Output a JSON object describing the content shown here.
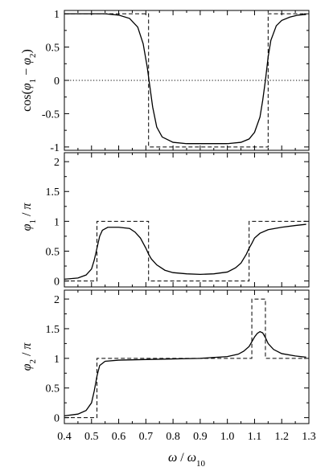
{
  "chart_data": [
    {
      "type": "line",
      "id": "cos",
      "ylabel_parts": [
        "cos(",
        "φ",
        "1",
        " − ",
        "φ",
        "2",
        ")"
      ],
      "xlim": [
        0.4,
        1.3
      ],
      "ylim": [
        -1.05,
        1.05
      ],
      "yticks": [
        1,
        0.5,
        0,
        -0.5,
        -1
      ],
      "ytick_labels": [
        "1",
        "0.5",
        "0",
        "-0.5",
        "-1"
      ],
      "reference_line": {
        "y": 0,
        "style": "dotted"
      },
      "series": [
        {
          "style": "solid",
          "x": [
            0.4,
            0.55,
            0.6,
            0.64,
            0.67,
            0.69,
            0.705,
            0.715,
            0.725,
            0.74,
            0.76,
            0.8,
            0.85,
            0.9,
            0.95,
            1.0,
            1.05,
            1.08,
            1.1,
            1.12,
            1.13,
            1.14,
            1.15,
            1.16,
            1.18,
            1.2,
            1.23,
            1.26,
            1.29
          ],
          "y": [
            1.0,
            1.0,
            0.98,
            0.93,
            0.8,
            0.55,
            0.2,
            -0.1,
            -0.4,
            -0.7,
            -0.85,
            -0.93,
            -0.95,
            -0.95,
            -0.95,
            -0.95,
            -0.93,
            -0.88,
            -0.78,
            -0.55,
            -0.3,
            0.0,
            0.35,
            0.6,
            0.82,
            0.9,
            0.95,
            0.98,
            0.99
          ]
        },
        {
          "style": "dashed",
          "x": [
            0.4,
            0.71,
            0.71,
            1.15,
            1.15,
            1.29
          ],
          "y": [
            1,
            1,
            -1,
            -1,
            1,
            1
          ]
        }
      ]
    },
    {
      "type": "line",
      "id": "phi1",
      "ylabel_parts": [
        "φ",
        "1",
        " / ",
        "π"
      ],
      "xlim": [
        0.4,
        1.3
      ],
      "ylim": [
        -0.1,
        2.15
      ],
      "yticks": [
        0,
        0.5,
        1,
        1.5,
        2
      ],
      "ytick_labels": [
        "0",
        "0.5",
        "1",
        "1.5",
        "2"
      ],
      "series": [
        {
          "style": "solid",
          "x": [
            0.4,
            0.45,
            0.48,
            0.5,
            0.51,
            0.52,
            0.53,
            0.54,
            0.56,
            0.6,
            0.64,
            0.66,
            0.68,
            0.7,
            0.71,
            0.72,
            0.74,
            0.77,
            0.8,
            0.85,
            0.9,
            0.95,
            1.0,
            1.03,
            1.05,
            1.07,
            1.08,
            1.09,
            1.1,
            1.12,
            1.15,
            1.2,
            1.25,
            1.29
          ],
          "y": [
            0.03,
            0.05,
            0.1,
            0.2,
            0.35,
            0.55,
            0.75,
            0.85,
            0.9,
            0.9,
            0.88,
            0.82,
            0.72,
            0.55,
            0.45,
            0.37,
            0.27,
            0.18,
            0.14,
            0.12,
            0.11,
            0.12,
            0.15,
            0.22,
            0.3,
            0.45,
            0.55,
            0.63,
            0.72,
            0.8,
            0.86,
            0.9,
            0.93,
            0.95
          ]
        },
        {
          "style": "dashed",
          "x": [
            0.4,
            0.52,
            0.52,
            0.71,
            0.71,
            1.08,
            1.08,
            1.29
          ],
          "y": [
            0,
            0,
            1,
            1,
            0,
            0,
            1,
            1
          ]
        }
      ]
    },
    {
      "type": "line",
      "id": "phi2",
      "ylabel_parts": [
        "φ",
        "2",
        " / ",
        "π"
      ],
      "xlabel_parts": [
        "ω",
        " / ",
        "ω",
        "10"
      ],
      "xlim": [
        0.4,
        1.3
      ],
      "ylim": [
        -0.1,
        2.15
      ],
      "xticks": [
        0.4,
        0.5,
        0.6,
        0.7,
        0.8,
        0.9,
        1.0,
        1.1,
        1.2,
        1.3
      ],
      "xtick_labels": [
        "0.4",
        "0.5",
        "0.6",
        "0.7",
        "0.8",
        "0.9",
        "1.0",
        "1.1",
        "1.2",
        "1.3"
      ],
      "yticks": [
        0,
        0.5,
        1,
        1.5,
        2
      ],
      "ytick_labels": [
        "0",
        "0.5",
        "1",
        "1.5",
        "2"
      ],
      "series": [
        {
          "style": "solid",
          "x": [
            0.4,
            0.45,
            0.48,
            0.5,
            0.51,
            0.52,
            0.53,
            0.55,
            0.6,
            0.7,
            0.8,
            0.9,
            1.0,
            1.04,
            1.06,
            1.08,
            1.09,
            1.1,
            1.11,
            1.12,
            1.13,
            1.14,
            1.15,
            1.17,
            1.2,
            1.25,
            1.29
          ],
          "y": [
            0.03,
            0.06,
            0.12,
            0.25,
            0.45,
            0.7,
            0.88,
            0.95,
            0.97,
            0.98,
            0.99,
            1.0,
            1.03,
            1.07,
            1.12,
            1.2,
            1.28,
            1.36,
            1.42,
            1.45,
            1.43,
            1.35,
            1.25,
            1.15,
            1.08,
            1.04,
            1.02
          ]
        },
        {
          "style": "dashed",
          "x": [
            0.4,
            0.52,
            0.52,
            1.09,
            1.09,
            1.14,
            1.14,
            1.29
          ],
          "y": [
            0,
            0,
            1,
            1,
            2,
            2,
            1,
            1
          ]
        }
      ]
    }
  ]
}
